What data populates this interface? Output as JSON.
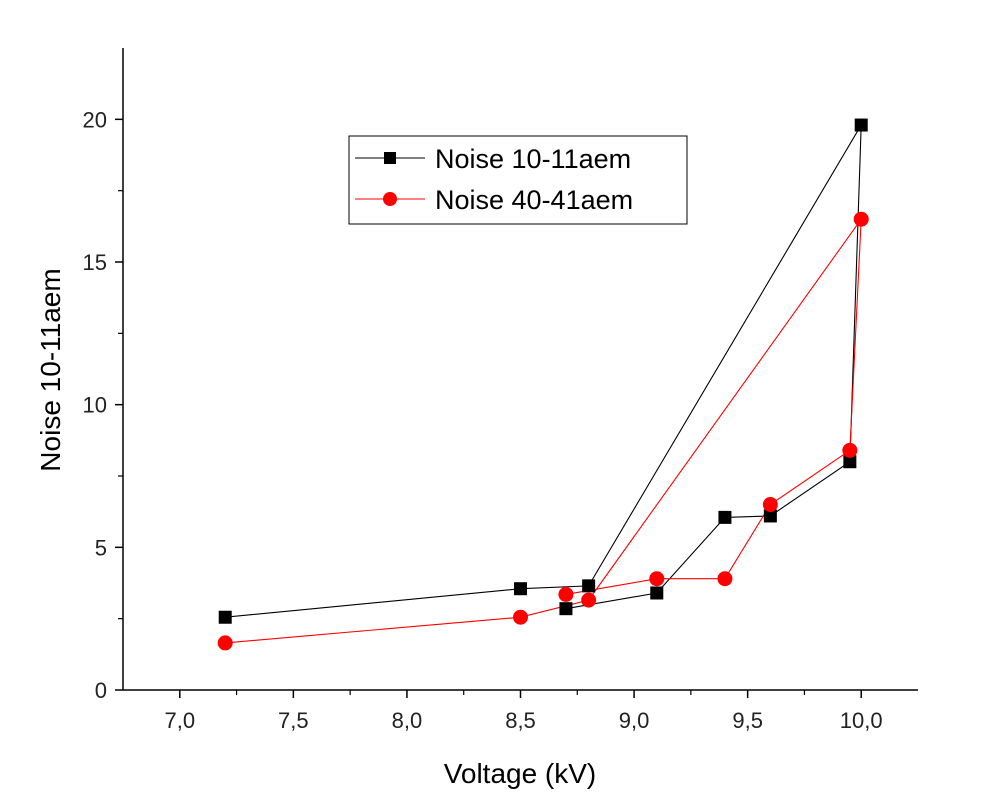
{
  "chart_data": {
    "type": "line",
    "xlabel": "Voltage (kV)",
    "ylabel": "Noise 10-11aem",
    "xlim": [
      6.75,
      10.25
    ],
    "ylim": [
      0,
      22.5
    ],
    "x_ticks": [
      "7,0",
      "7,5",
      "8,0",
      "8,5",
      "9,0",
      "9,5",
      "10,0"
    ],
    "x_tick_values": [
      7.0,
      7.5,
      8.0,
      8.5,
      9.0,
      9.5,
      10.0
    ],
    "y_ticks": [
      "0",
      "5",
      "10",
      "15",
      "20"
    ],
    "y_tick_values": [
      0,
      5,
      10,
      15,
      20
    ],
    "grid": false,
    "legend_position": "upper-center",
    "series": [
      {
        "name": "Noise 10-11aem",
        "color": "#000000",
        "marker": "square",
        "points": [
          [
            7.2,
            2.55
          ],
          [
            8.5,
            3.55
          ],
          [
            8.8,
            3.65
          ],
          [
            10.0,
            19.8
          ],
          [
            9.95,
            8.0
          ],
          [
            9.6,
            6.1
          ],
          [
            9.4,
            6.05
          ],
          [
            9.1,
            3.4
          ],
          [
            8.7,
            2.85
          ]
        ]
      },
      {
        "name": "Noise 40-41aem",
        "color": "#ff0000",
        "marker": "circle",
        "points": [
          [
            7.2,
            1.65
          ],
          [
            8.5,
            2.55
          ],
          [
            8.8,
            3.15
          ],
          [
            10.0,
            16.5
          ],
          [
            9.95,
            8.4
          ],
          [
            9.6,
            6.5
          ],
          [
            9.4,
            3.9
          ],
          [
            9.1,
            3.9
          ],
          [
            8.7,
            3.35
          ]
        ]
      }
    ]
  }
}
